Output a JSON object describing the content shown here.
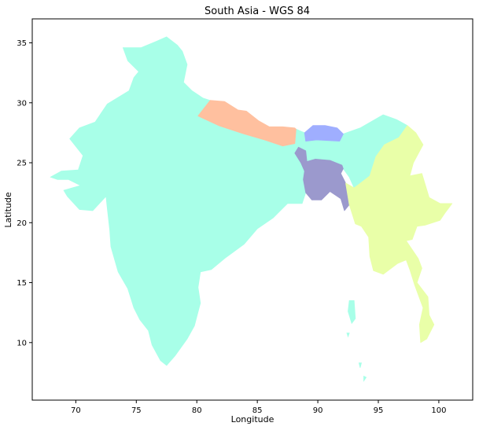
{
  "title": "South Asia - WGS 84",
  "xlabel": "Longitude",
  "ylabel": "Latitude",
  "x_axis": {
    "min": 66.4,
    "max": 102.8,
    "ticks": [
      70,
      75,
      80,
      85,
      90,
      95,
      100
    ]
  },
  "y_axis": {
    "min": 5.2,
    "max": 37.0,
    "ticks": [
      10,
      15,
      20,
      25,
      30,
      35
    ]
  },
  "regions": [
    {
      "color": "#a8ffe8",
      "outline": [
        [
          67.9,
          23.8
        ],
        [
          68.8,
          24.3
        ],
        [
          70.2,
          24.4
        ],
        [
          70.6,
          25.6
        ],
        [
          69.5,
          27.0
        ],
        [
          70.3,
          27.9
        ],
        [
          71.6,
          28.4
        ],
        [
          72.6,
          29.9
        ],
        [
          74.4,
          31.0
        ],
        [
          74.8,
          32.1
        ],
        [
          75.2,
          32.6
        ],
        [
          74.3,
          33.5
        ],
        [
          73.9,
          34.6
        ],
        [
          75.4,
          34.6
        ],
        [
          76.6,
          35.1
        ],
        [
          77.5,
          35.5
        ],
        [
          78.4,
          34.8
        ],
        [
          78.8,
          34.3
        ],
        [
          79.2,
          33.2
        ],
        [
          78.9,
          31.7
        ],
        [
          79.6,
          31.0
        ],
        [
          80.5,
          30.4
        ],
        [
          81.1,
          30.2
        ],
        [
          80.9,
          29.7
        ],
        [
          80.1,
          28.9
        ],
        [
          81.8,
          28.1
        ],
        [
          83.9,
          27.4
        ],
        [
          85.6,
          26.9
        ],
        [
          87.1,
          26.4
        ],
        [
          88.1,
          26.6
        ],
        [
          88.2,
          27.8
        ],
        [
          88.9,
          27.5
        ],
        [
          89.0,
          26.8
        ],
        [
          89.9,
          26.9
        ],
        [
          91.8,
          26.8
        ],
        [
          92.1,
          27.4
        ],
        [
          93.5,
          27.9
        ],
        [
          95.4,
          29.0
        ],
        [
          96.5,
          28.6
        ],
        [
          97.4,
          28.1
        ],
        [
          96.7,
          27.1
        ],
        [
          95.5,
          26.5
        ],
        [
          94.8,
          25.5
        ],
        [
          94.3,
          23.9
        ],
        [
          93.4,
          23.2
        ],
        [
          93.0,
          22.9
        ],
        [
          92.6,
          23.8
        ],
        [
          92.1,
          24.5
        ],
        [
          92.0,
          24.8
        ],
        [
          91.0,
          25.2
        ],
        [
          89.8,
          25.3
        ],
        [
          89.1,
          25.1
        ],
        [
          89.0,
          26.0
        ],
        [
          88.4,
          26.3
        ],
        [
          88.1,
          25.8
        ],
        [
          88.6,
          25.0
        ],
        [
          88.9,
          24.3
        ],
        [
          88.8,
          23.6
        ],
        [
          89.0,
          22.5
        ],
        [
          88.7,
          21.6
        ],
        [
          87.5,
          21.6
        ],
        [
          86.9,
          21.0
        ],
        [
          86.3,
          20.4
        ],
        [
          85.0,
          19.5
        ],
        [
          83.9,
          18.2
        ],
        [
          82.4,
          17.1
        ],
        [
          81.2,
          16.1
        ],
        [
          80.3,
          15.9
        ],
        [
          80.1,
          14.6
        ],
        [
          80.3,
          13.3
        ],
        [
          79.8,
          11.4
        ],
        [
          79.2,
          10.3
        ],
        [
          78.2,
          8.9
        ],
        [
          77.5,
          8.1
        ],
        [
          77.0,
          8.5
        ],
        [
          76.3,
          9.8
        ],
        [
          76.0,
          11.0
        ],
        [
          75.3,
          11.9
        ],
        [
          74.8,
          12.9
        ],
        [
          74.3,
          14.5
        ],
        [
          73.5,
          15.9
        ],
        [
          72.9,
          18.0
        ],
        [
          72.8,
          19.4
        ],
        [
          72.6,
          21.2
        ],
        [
          72.5,
          22.2
        ],
        [
          71.4,
          21.0
        ],
        [
          70.3,
          21.1
        ],
        [
          69.3,
          22.2
        ],
        [
          69.0,
          22.7
        ],
        [
          69.7,
          22.9
        ],
        [
          70.4,
          23.1
        ],
        [
          69.4,
          23.6
        ],
        [
          68.5,
          23.6
        ]
      ]
    },
    {
      "color": "#ffc09f",
      "outline": [
        [
          80.1,
          28.9
        ],
        [
          81.1,
          30.2
        ],
        [
          82.3,
          30.1
        ],
        [
          83.4,
          29.4
        ],
        [
          84.1,
          29.3
        ],
        [
          85.1,
          28.5
        ],
        [
          86.0,
          28.0
        ],
        [
          87.1,
          28.0
        ],
        [
          88.1,
          27.9
        ],
        [
          88.2,
          27.8
        ],
        [
          88.1,
          26.6
        ],
        [
          87.1,
          26.4
        ],
        [
          85.6,
          26.9
        ],
        [
          83.9,
          27.4
        ],
        [
          81.8,
          28.1
        ]
      ]
    },
    {
      "color": "#9faeff",
      "outline": [
        [
          88.9,
          27.5
        ],
        [
          89.6,
          28.1
        ],
        [
          90.6,
          28.1
        ],
        [
          91.6,
          27.9
        ],
        [
          92.1,
          27.4
        ],
        [
          91.8,
          26.8
        ],
        [
          89.9,
          26.9
        ],
        [
          89.0,
          26.8
        ]
      ]
    },
    {
      "color": "#9b99cd",
      "outline": [
        [
          89.0,
          26.0
        ],
        [
          89.1,
          25.1
        ],
        [
          89.8,
          25.3
        ],
        [
          91.0,
          25.2
        ],
        [
          92.0,
          24.8
        ],
        [
          92.1,
          24.5
        ],
        [
          91.9,
          24.1
        ],
        [
          92.3,
          23.3
        ],
        [
          92.6,
          21.5
        ],
        [
          92.2,
          21.0
        ],
        [
          91.9,
          22.0
        ],
        [
          91.0,
          22.6
        ],
        [
          90.3,
          21.9
        ],
        [
          89.5,
          21.9
        ],
        [
          89.0,
          22.5
        ],
        [
          88.8,
          23.6
        ],
        [
          88.9,
          24.3
        ],
        [
          88.6,
          25.0
        ],
        [
          88.1,
          25.8
        ],
        [
          88.4,
          26.3
        ]
      ]
    },
    {
      "color": "#e9ffa8",
      "outline": [
        [
          97.4,
          28.1
        ],
        [
          98.1,
          27.5
        ],
        [
          98.7,
          26.5
        ],
        [
          97.9,
          25.0
        ],
        [
          97.6,
          23.9
        ],
        [
          98.6,
          24.1
        ],
        [
          99.2,
          22.1
        ],
        [
          100.1,
          21.6
        ],
        [
          101.1,
          21.6
        ],
        [
          100.5,
          20.8
        ],
        [
          100.1,
          20.2
        ],
        [
          98.9,
          19.8
        ],
        [
          98.2,
          19.7
        ],
        [
          97.8,
          18.6
        ],
        [
          97.3,
          18.5
        ],
        [
          98.3,
          17.0
        ],
        [
          98.6,
          16.2
        ],
        [
          98.2,
          15.0
        ],
        [
          99.1,
          13.8
        ],
        [
          99.2,
          12.3
        ],
        [
          99.6,
          11.5
        ],
        [
          99.0,
          10.3
        ],
        [
          98.5,
          10.0
        ],
        [
          98.4,
          11.5
        ],
        [
          98.7,
          12.9
        ],
        [
          98.0,
          14.8
        ],
        [
          97.6,
          16.1
        ],
        [
          97.3,
          16.9
        ],
        [
          96.6,
          16.6
        ],
        [
          95.4,
          15.7
        ],
        [
          94.6,
          16.0
        ],
        [
          94.3,
          17.2
        ],
        [
          94.2,
          18.8
        ],
        [
          93.6,
          19.7
        ],
        [
          93.1,
          19.9
        ],
        [
          92.6,
          21.5
        ],
        [
          92.3,
          23.3
        ],
        [
          93.0,
          22.9
        ],
        [
          93.4,
          23.2
        ],
        [
          94.3,
          23.9
        ],
        [
          94.8,
          25.5
        ],
        [
          95.5,
          26.5
        ],
        [
          96.7,
          27.1
        ]
      ]
    }
  ],
  "islands": [
    {
      "color": "#a8ffe8",
      "points": [
        [
          92.6,
          13.5
        ],
        [
          93.0,
          13.5
        ],
        [
          93.1,
          12.0
        ],
        [
          92.8,
          11.6
        ],
        [
          92.5,
          12.6
        ]
      ]
    },
    {
      "color": "#a8ffe8",
      "points": [
        [
          92.4,
          10.8
        ],
        [
          92.6,
          10.8
        ],
        [
          92.5,
          10.5
        ]
      ]
    },
    {
      "color": "#a8ffe8",
      "points": [
        [
          93.4,
          8.3
        ],
        [
          93.6,
          8.3
        ],
        [
          93.5,
          7.9
        ]
      ]
    },
    {
      "color": "#a8ffe8",
      "points": [
        [
          93.8,
          7.2
        ],
        [
          94.0,
          7.1
        ],
        [
          93.8,
          6.8
        ]
      ]
    }
  ]
}
